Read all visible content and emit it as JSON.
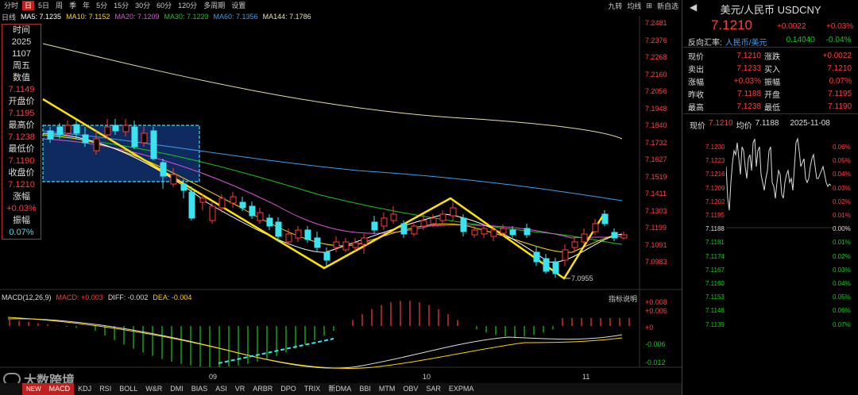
{
  "toolbar": {
    "periods": [
      "分时",
      "日",
      "5日",
      "周",
      "季",
      "年",
      "5分",
      "15分",
      "30分",
      "60分",
      "120分",
      "多周期",
      "设置"
    ],
    "active_period": "日",
    "right_tools": [
      "九转",
      "均线",
      "⊞",
      "新自选"
    ]
  },
  "ma_line": {
    "label": "日线",
    "ma5": "MA5: 7.1235",
    "ma10": "MA10: 7.1152",
    "ma20": "MA20: 7.1209",
    "ma30": "MA30: 7.1223",
    "ma60": "MA60: 7.1356",
    "ma144": "MA144: 7.1786",
    "colors": {
      "ma5": "#ffffff",
      "ma10": "#ffd400",
      "ma20": "#e050e0",
      "ma30": "#19c819",
      "ma60": "#3b9ff0",
      "ma144": "#e8e0a0"
    }
  },
  "info_panel": {
    "time_label": "时间",
    "year": "2025",
    "date": "1107",
    "weekday": "周五",
    "value_label": "数值",
    "value": "7.1149",
    "open_label": "开盘价",
    "open": "7.1195",
    "high_label": "最高价",
    "high": "7.1238",
    "low_label": "最低价",
    "low": "7.1190",
    "close_label": "收盘价",
    "close": "7.1210",
    "chg_label": "涨幅",
    "chg": "+0.03%",
    "amp_label": "振幅",
    "amp": "0.07%"
  },
  "price_axis": [
    "7.2481",
    "7.2376",
    "7.2268",
    "7.2160",
    "7.2056",
    "7.1948",
    "7.1840",
    "7.1732",
    "7.1627",
    "7.1519",
    "7.1411",
    "7.1303",
    "7.1199",
    "7.1091",
    "7.0983"
  ],
  "low_marker": "7.0955",
  "macd": {
    "title": "MACD(12,26,9)",
    "macd": "MACD: +0.003",
    "diff": "DIFF: -0.002",
    "dea": "DEA: -0.004",
    "help": "指标说明",
    "axis": [
      "+0.008",
      "+0.006",
      "+0",
      "-0.006",
      "-0.012"
    ]
  },
  "x_axis": [
    "09",
    "10",
    "11"
  ],
  "bottom_tabs": [
    "MACD",
    "KDJ",
    "RSI",
    "BOLL",
    "W&R",
    "DMI",
    "BIAS",
    "ASI",
    "VR",
    "ARBR",
    "DPO",
    "TRIX",
    "新DMA",
    "BBI",
    "MTM",
    "OBV",
    "SAR",
    "EXPMA"
  ],
  "active_tab": "MACD",
  "watermark": "大数跨境",
  "new_badge": "NEW",
  "right_panel": {
    "title": "美元/人民币 USDCNY",
    "price": "7.1210",
    "change": "+0.0022",
    "change_pct": "+0.03%",
    "reverse_label": "反向汇率:",
    "reverse_pair": "人民币/美元",
    "reverse_value": "0.14040",
    "reverse_pct": "-0.04%",
    "rows": [
      {
        "l1": "现价",
        "v1": "7.1210",
        "l2": "涨跌",
        "v2": "+0.0022"
      },
      {
        "l1": "卖出",
        "v1": "7.1233",
        "l2": "买入",
        "v2": "7.1210"
      },
      {
        "l1": "涨幅",
        "v1": "+0.03%",
        "l2": "振幅",
        "v2": "0.07%"
      },
      {
        "l1": "昨收",
        "v1": "7.1188",
        "l2": "开盘",
        "v2": "7.1195"
      },
      {
        "l1": "最高",
        "v1": "7.1238",
        "l2": "最低",
        "v2": "7.1190"
      }
    ],
    "mini_header": {
      "now_label": "现价",
      "now": "7.1210",
      "avg_label": "均价",
      "avg": "7.1188",
      "date": "2025-11-08"
    },
    "mini_left_axis": [
      "7.1230",
      "7.1223",
      "7.1216",
      "7.1209",
      "7.1202",
      "7.1195",
      "7.1188",
      "7.1181",
      "7.1174",
      "7.1167",
      "7.1160",
      "7.1153",
      "7.1146",
      "7.1139"
    ],
    "mini_right_axis": [
      "0.06%",
      "0.05%",
      "0.04%",
      "0.03%",
      "0.02%",
      "0.01%",
      "0.00%",
      "0.01%",
      "0.02%",
      "0.03%",
      "0.04%",
      "0.05%",
      "0.06%",
      "0.07%"
    ]
  }
}
